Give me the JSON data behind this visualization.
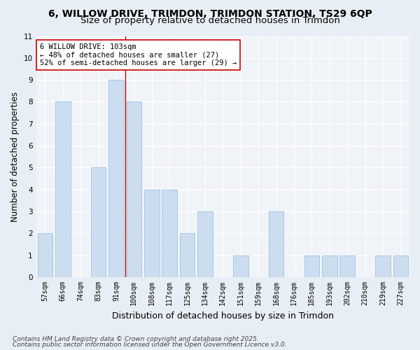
{
  "title_line1": "6, WILLOW DRIVE, TRIMDON, TRIMDON STATION, TS29 6QP",
  "title_line2": "Size of property relative to detached houses in Trimdon",
  "xlabel": "Distribution of detached houses by size in Trimdon",
  "ylabel": "Number of detached properties",
  "categories": [
    "57sqm",
    "66sqm",
    "74sqm",
    "83sqm",
    "91sqm",
    "100sqm",
    "108sqm",
    "117sqm",
    "125sqm",
    "134sqm",
    "142sqm",
    "151sqm",
    "159sqm",
    "168sqm",
    "176sqm",
    "185sqm",
    "193sqm",
    "202sqm",
    "210sqm",
    "219sqm",
    "227sqm"
  ],
  "values": [
    2,
    8,
    0,
    5,
    9,
    8,
    4,
    4,
    2,
    3,
    0,
    1,
    0,
    3,
    0,
    1,
    1,
    1,
    0,
    1,
    1
  ],
  "bar_color": "#ccddf0",
  "bar_edge_color": "#a8c8e8",
  "highlight_bar_index": 5,
  "highlight_line_color": "#cc0000",
  "annotation_text": "6 WILLOW DRIVE: 103sqm\n← 48% of detached houses are smaller (27)\n52% of semi-detached houses are larger (29) →",
  "annotation_box_color": "#ffffff",
  "annotation_box_edge": "#cc0000",
  "ylim": [
    0,
    11
  ],
  "yticks": [
    0,
    1,
    2,
    3,
    4,
    5,
    6,
    7,
    8,
    9,
    10,
    11
  ],
  "footer_line1": "Contains HM Land Registry data © Crown copyright and database right 2025.",
  "footer_line2": "Contains public sector information licensed under the Open Government Licence v3.0.",
  "bg_color": "#e8eef5",
  "plot_bg_color": "#f0f4f8",
  "grid_color": "#ffffff",
  "title_fontsize": 10,
  "subtitle_fontsize": 9.5,
  "axis_label_fontsize": 8.5,
  "tick_fontsize": 7,
  "annotation_fontsize": 7.5,
  "footer_fontsize": 6.5
}
